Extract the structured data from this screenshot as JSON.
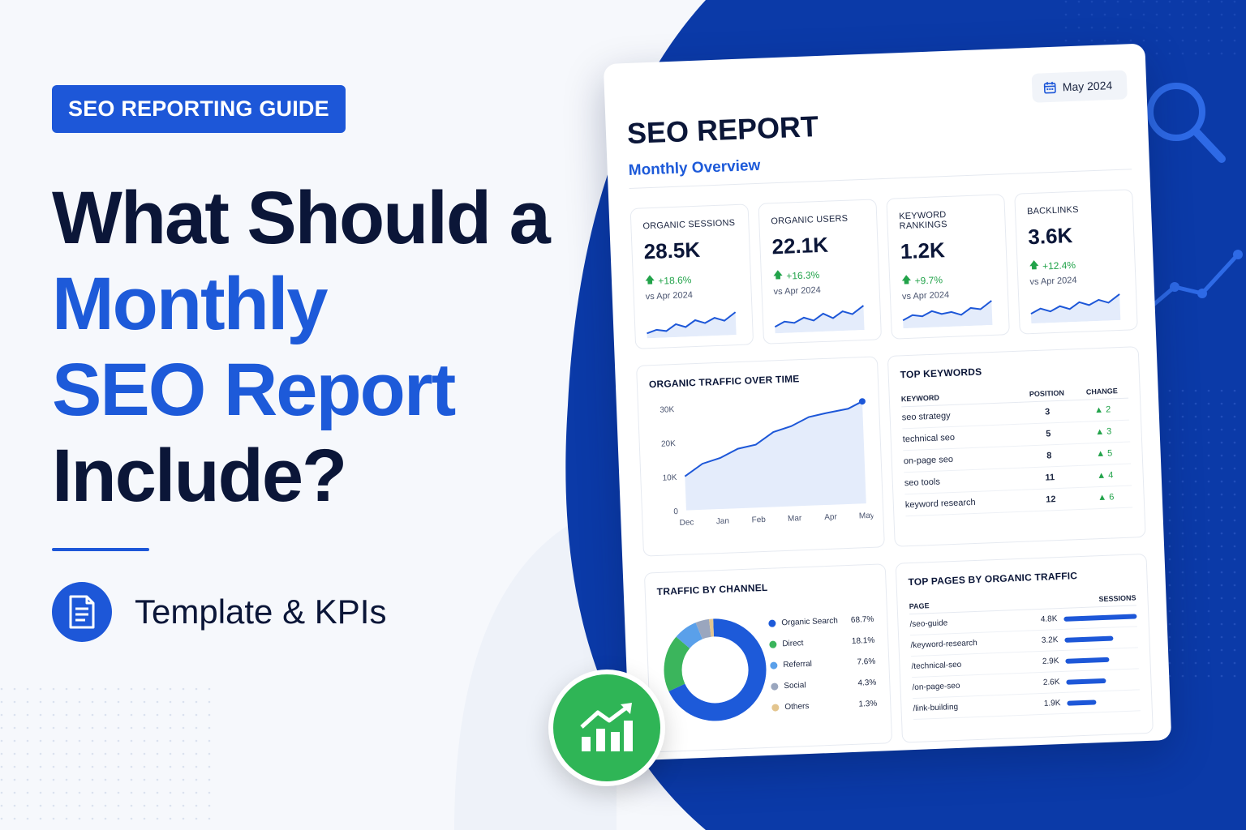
{
  "left": {
    "badge": "SEO REPORTING GUIDE",
    "headline": {
      "line1": "What Should a",
      "line2": "Monthly",
      "line3": "SEO Report",
      "line4": "Include?"
    },
    "subtitle": "Template & KPIs"
  },
  "report": {
    "title": "SEO REPORT",
    "subtitle": "Monthly Overview",
    "date": "May 2024",
    "kpis": [
      {
        "label": "ORGANIC SESSIONS",
        "value": "28.5K",
        "change": "+18.6%",
        "vs": "vs Apr 2024"
      },
      {
        "label": "ORGANIC USERS",
        "value": "22.1K",
        "change": "+16.3%",
        "vs": "vs Apr 2024"
      },
      {
        "label": "KEYWORD RANKINGS",
        "value": "1.2K",
        "change": "+9.7%",
        "vs": "vs Apr 2024"
      },
      {
        "label": "BACKLINKS",
        "value": "3.6K",
        "change": "+12.4%",
        "vs": "vs Apr 2024"
      }
    ],
    "traffic": {
      "title": "ORGANIC TRAFFIC OVER TIME"
    },
    "keywords": {
      "title": "TOP KEYWORDS",
      "headers": [
        "KEYWORD",
        "POSITION",
        "CHANGE"
      ],
      "rows": [
        {
          "keyword": "seo strategy",
          "position": "3",
          "change": "2"
        },
        {
          "keyword": "technical seo",
          "position": "5",
          "change": "3"
        },
        {
          "keyword": "on-page seo",
          "position": "8",
          "change": "5"
        },
        {
          "keyword": "seo tools",
          "position": "11",
          "change": "4"
        },
        {
          "keyword": "keyword research",
          "position": "12",
          "change": "6"
        }
      ]
    },
    "channel": {
      "title": "TRAFFIC BY CHANNEL"
    },
    "pages": {
      "title": "TOP PAGES BY ORGANIC TRAFFIC",
      "headers": [
        "PAGE",
        "SESSIONS"
      ],
      "rows": [
        {
          "page": "/seo-guide",
          "sessions": "4.8K",
          "value": 4.8
        },
        {
          "page": "/keyword-research",
          "sessions": "3.2K",
          "value": 3.2
        },
        {
          "page": "/technical-seo",
          "sessions": "2.9K",
          "value": 2.9
        },
        {
          "page": "/on-page-seo",
          "sessions": "2.6K",
          "value": 2.6
        },
        {
          "page": "/link-building",
          "sessions": "1.9K",
          "value": 1.9
        }
      ]
    }
  },
  "chart_data": [
    {
      "type": "area",
      "title": "ORGANIC TRAFFIC OVER TIME",
      "categories": [
        "Dec",
        "Jan",
        "Feb",
        "Mar",
        "Apr",
        "May"
      ],
      "x": [
        0,
        0.5,
        1,
        1.5,
        2,
        2.5,
        3,
        3.5,
        4,
        4.3,
        4.6,
        5
      ],
      "y": [
        10000,
        13500,
        15000,
        17500,
        18500,
        22000,
        23500,
        26000,
        27000,
        27500,
        28000,
        30000
      ],
      "ylim": [
        0,
        30000
      ],
      "yticks": [
        "0",
        "10K",
        "20K",
        "30K"
      ]
    },
    {
      "type": "pie",
      "title": "TRAFFIC BY CHANNEL",
      "series": [
        {
          "name": "Organic Search",
          "value": 68.7,
          "label": "68.7%",
          "color": "#1d5ad9"
        },
        {
          "name": "Direct",
          "value": 18.1,
          "label": "18.1%",
          "color": "#3bb55c"
        },
        {
          "name": "Referral",
          "value": 7.6,
          "label": "7.6%",
          "color": "#5aa0ea"
        },
        {
          "name": "Social",
          "value": 4.3,
          "label": "4.3%",
          "color": "#9aa6be"
        },
        {
          "name": "Others",
          "value": 1.3,
          "label": "1.3%",
          "color": "#e3c58e"
        }
      ]
    }
  ],
  "colors": {
    "primary_blue": "#1d57d8",
    "dark_navy": "#0b1638",
    "green": "#2fb556",
    "deep_blue_bg": "#0b3aa8"
  },
  "icons": [
    "document-list-icon",
    "calendar-icon",
    "trend-up-arrow-icon",
    "bar-chart-growth-icon",
    "magnifier-icon"
  ]
}
